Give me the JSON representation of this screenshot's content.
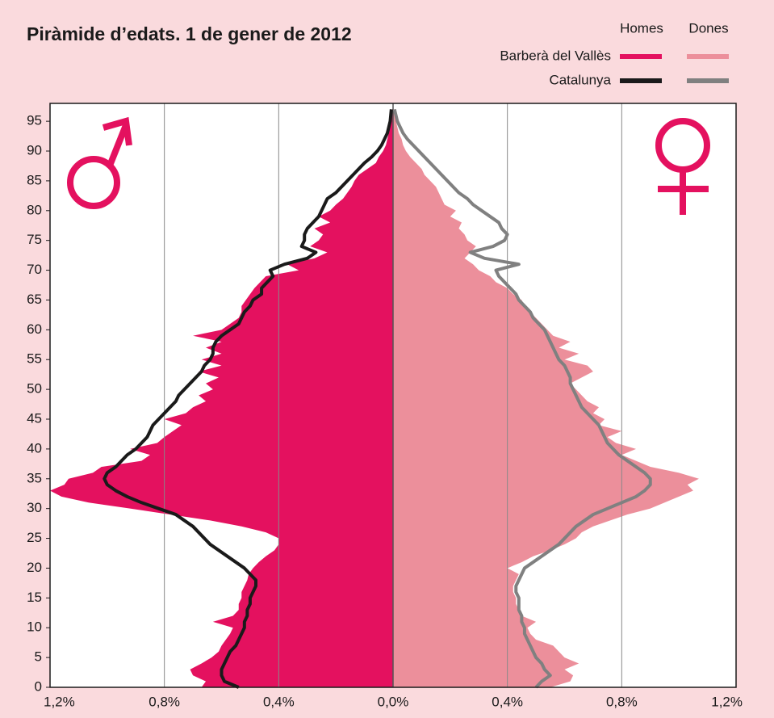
{
  "chart_data": {
    "type": "pyramid",
    "title": "Piràmide d’edats. 1 de gener de 2012",
    "sexes": [
      "Homes",
      "Dones"
    ],
    "xlim": [
      -1.2,
      1.2
    ],
    "xticks": [
      {
        "value": -1.2,
        "label": "1,2%"
      },
      {
        "value": -0.8,
        "label": "0,8%"
      },
      {
        "value": -0.4,
        "label": "0,4%"
      },
      {
        "value": 0,
        "label": "0,0%"
      },
      {
        "value": 0.4,
        "label": "0,4%"
      },
      {
        "value": 0.8,
        "label": "0,8%"
      },
      {
        "value": 1.2,
        "label": "1,2%"
      }
    ],
    "ylim": [
      0,
      98
    ],
    "yticks": [
      0,
      5,
      10,
      15,
      20,
      25,
      30,
      35,
      40,
      45,
      50,
      55,
      60,
      65,
      70,
      75,
      80,
      85,
      90,
      95
    ],
    "grid": true,
    "y": [
      0,
      1,
      2,
      3,
      4,
      5,
      6,
      7,
      8,
      9,
      10,
      11,
      12,
      13,
      14,
      15,
      16,
      17,
      18,
      19,
      20,
      21,
      22,
      23,
      24,
      25,
      26,
      27,
      28,
      29,
      30,
      31,
      32,
      33,
      34,
      35,
      36,
      37,
      38,
      39,
      40,
      41,
      42,
      43,
      44,
      45,
      46,
      47,
      48,
      49,
      50,
      51,
      52,
      53,
      54,
      55,
      56,
      57,
      58,
      59,
      60,
      61,
      62,
      63,
      64,
      65,
      66,
      67,
      68,
      69,
      70,
      71,
      72,
      73,
      74,
      75,
      76,
      77,
      78,
      79,
      80,
      81,
      82,
      83,
      84,
      85,
      86,
      87,
      88,
      89,
      90,
      91,
      92,
      93,
      94,
      95,
      96,
      97
    ],
    "series": [
      {
        "name": "Barberà del Vallès",
        "style": "area",
        "colors": [
          "#e4115f",
          "#ec8f9b"
        ],
        "men": [
          0.67,
          0.655,
          0.7,
          0.71,
          0.67,
          0.635,
          0.61,
          0.6,
          0.585,
          0.57,
          0.56,
          0.63,
          0.56,
          0.54,
          0.54,
          0.53,
          0.53,
          0.52,
          0.51,
          0.505,
          0.49,
          0.47,
          0.445,
          0.415,
          0.4,
          0.4,
          0.445,
          0.53,
          0.64,
          0.78,
          0.92,
          1.065,
          1.16,
          1.2,
          1.15,
          1.135,
          1.05,
          1.02,
          0.88,
          0.85,
          0.92,
          0.825,
          0.8,
          0.77,
          0.74,
          0.8,
          0.725,
          0.7,
          0.655,
          0.68,
          0.63,
          0.655,
          0.61,
          0.68,
          0.6,
          0.67,
          0.6,
          0.655,
          0.6,
          0.7,
          0.6,
          0.57,
          0.54,
          0.53,
          0.53,
          0.515,
          0.5,
          0.485,
          0.465,
          0.445,
          0.33,
          0.37,
          0.275,
          0.23,
          0.29,
          0.26,
          0.245,
          0.275,
          0.22,
          0.26,
          0.22,
          0.2,
          0.175,
          0.16,
          0.145,
          0.135,
          0.12,
          0.09,
          0.06,
          0.05,
          0.035,
          0.025,
          0.02,
          0.015,
          0.01,
          0.008,
          0.005,
          0.003
        ],
        "women": [
          0.55,
          0.62,
          0.63,
          0.6,
          0.65,
          0.6,
          0.58,
          0.56,
          0.5,
          0.48,
          0.47,
          0.5,
          0.45,
          0.44,
          0.43,
          0.43,
          0.42,
          0.42,
          0.43,
          0.44,
          0.4,
          0.45,
          0.49,
          0.55,
          0.6,
          0.64,
          0.66,
          0.7,
          0.76,
          0.82,
          0.9,
          0.95,
          1.0,
          1.05,
          1.03,
          1.07,
          1.0,
          0.9,
          0.85,
          0.8,
          0.85,
          0.78,
          0.75,
          0.8,
          0.72,
          0.74,
          0.7,
          0.72,
          0.68,
          0.66,
          0.64,
          0.62,
          0.66,
          0.7,
          0.68,
          0.6,
          0.65,
          0.58,
          0.62,
          0.56,
          0.54,
          0.52,
          0.5,
          0.48,
          0.46,
          0.45,
          0.42,
          0.4,
          0.36,
          0.34,
          0.3,
          0.28,
          0.25,
          0.27,
          0.29,
          0.26,
          0.25,
          0.23,
          0.24,
          0.2,
          0.22,
          0.18,
          0.17,
          0.16,
          0.15,
          0.13,
          0.11,
          0.1,
          0.08,
          0.06,
          0.045,
          0.035,
          0.03,
          0.02,
          0.015,
          0.01,
          0.008,
          0.005
        ]
      },
      {
        "name": "Catalunya",
        "style": "line",
        "colors": [
          "#1a1a1a",
          "#808080"
        ],
        "men": [
          0.54,
          0.59,
          0.6,
          0.6,
          0.59,
          0.58,
          0.57,
          0.55,
          0.54,
          0.53,
          0.52,
          0.52,
          0.51,
          0.51,
          0.5,
          0.5,
          0.49,
          0.48,
          0.48,
          0.5,
          0.52,
          0.55,
          0.58,
          0.61,
          0.64,
          0.66,
          0.68,
          0.7,
          0.73,
          0.76,
          0.82,
          0.88,
          0.93,
          0.97,
          1.0,
          1.01,
          1.0,
          0.97,
          0.95,
          0.93,
          0.9,
          0.88,
          0.86,
          0.85,
          0.84,
          0.82,
          0.8,
          0.78,
          0.76,
          0.75,
          0.73,
          0.71,
          0.69,
          0.67,
          0.66,
          0.64,
          0.63,
          0.63,
          0.62,
          0.6,
          0.57,
          0.54,
          0.53,
          0.52,
          0.5,
          0.49,
          0.46,
          0.46,
          0.44,
          0.42,
          0.43,
          0.38,
          0.3,
          0.27,
          0.32,
          0.31,
          0.31,
          0.3,
          0.28,
          0.26,
          0.25,
          0.24,
          0.23,
          0.2,
          0.18,
          0.16,
          0.14,
          0.12,
          0.1,
          0.075,
          0.055,
          0.04,
          0.03,
          0.02,
          0.015,
          0.01,
          0.008,
          0.006
        ],
        "women": [
          0.5,
          0.52,
          0.55,
          0.53,
          0.52,
          0.5,
          0.49,
          0.48,
          0.47,
          0.46,
          0.46,
          0.45,
          0.45,
          0.44,
          0.44,
          0.44,
          0.43,
          0.43,
          0.44,
          0.45,
          0.46,
          0.49,
          0.52,
          0.55,
          0.58,
          0.6,
          0.62,
          0.64,
          0.67,
          0.7,
          0.75,
          0.8,
          0.85,
          0.88,
          0.9,
          0.9,
          0.88,
          0.85,
          0.82,
          0.79,
          0.77,
          0.75,
          0.74,
          0.73,
          0.72,
          0.7,
          0.68,
          0.66,
          0.65,
          0.64,
          0.63,
          0.62,
          0.62,
          0.61,
          0.6,
          0.58,
          0.57,
          0.56,
          0.55,
          0.54,
          0.53,
          0.51,
          0.49,
          0.48,
          0.46,
          0.44,
          0.43,
          0.41,
          0.39,
          0.37,
          0.36,
          0.44,
          0.32,
          0.27,
          0.35,
          0.39,
          0.4,
          0.38,
          0.37,
          0.34,
          0.31,
          0.28,
          0.26,
          0.23,
          0.21,
          0.19,
          0.17,
          0.15,
          0.13,
          0.11,
          0.09,
          0.07,
          0.05,
          0.035,
          0.025,
          0.015,
          0.01,
          0.005
        ]
      }
    ]
  }
}
